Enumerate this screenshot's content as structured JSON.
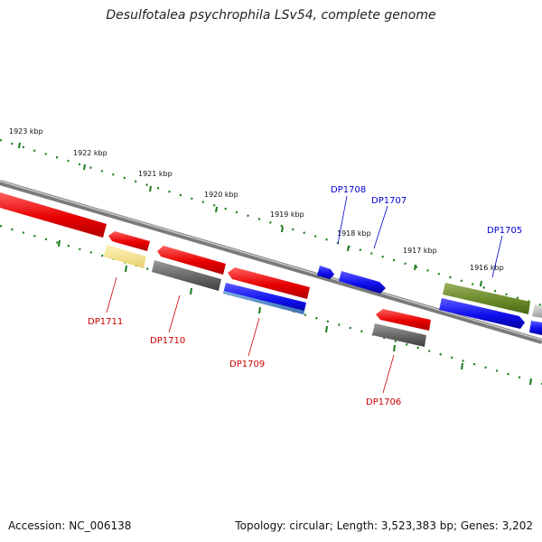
{
  "title": "Desulfotalea psychrophila LSv54, complete genome",
  "accession": "Accession: NC_006138",
  "summary": "Topology: circular; Length: 3,523,383 bp; Genes: 3,202",
  "colors": {
    "tick": "#1a7a1a",
    "backbone": "#8a8a8a",
    "red_gene": "#ee1111",
    "blue_gene": "#1111ee",
    "gray_gene": "#666666",
    "olive_gene": "#6a8a2a",
    "yellow_gene": "#f0e08a",
    "label_red": "#cc0000",
    "label_blue": "#0000cc"
  },
  "kbp_labels": [
    "1923 kbp",
    "1922 kbp",
    "1921 kbp",
    "1920 kbp",
    "1919 kbp",
    "1918 kbp",
    "1917 kbp",
    "1916 kbp"
  ],
  "gene_labels_top": [
    "DP1708",
    "DP1707",
    "DP1705"
  ],
  "gene_labels_bottom": [
    "DP1711",
    "DP1710",
    "DP1709",
    "DP1706"
  ]
}
